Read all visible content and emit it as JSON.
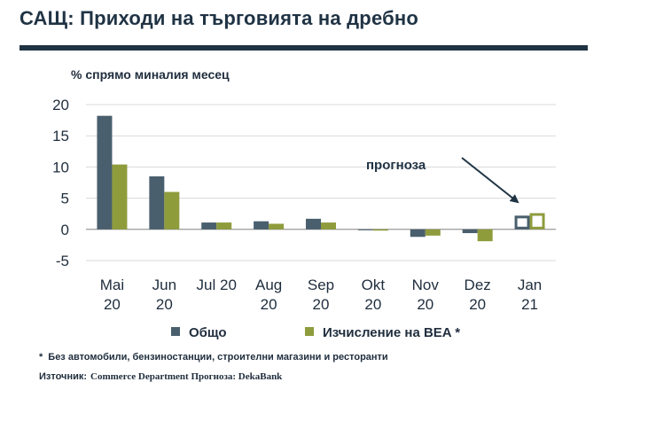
{
  "header": {
    "title": "САЩ: Приходи на търговията на дребно"
  },
  "chart_data": {
    "type": "bar",
    "ylabel": "% спрямо миналия месец",
    "ylim": [
      -5,
      20
    ],
    "yticks": [
      20,
      15,
      10,
      5,
      0,
      -5
    ],
    "grid": true,
    "categories": [
      {
        "line1": "Mai",
        "line2": "20"
      },
      {
        "line1": "Jun",
        "line2": "20"
      },
      {
        "line1": "Jul 20",
        "line2": ""
      },
      {
        "line1": "Aug",
        "line2": "20"
      },
      {
        "line1": "Sep",
        "line2": "20"
      },
      {
        "line1": "Okt",
        "line2": "20"
      },
      {
        "line1": "Nov",
        "line2": "20"
      },
      {
        "line1": "Dez",
        "line2": "20"
      },
      {
        "line1": "Jan",
        "line2": "21"
      }
    ],
    "series": [
      {
        "name": "Общо",
        "color": "#4a5f6d",
        "values": [
          18.2,
          8.5,
          1.1,
          1.3,
          1.7,
          -0.1,
          -1.2,
          -0.6,
          2.2
        ]
      },
      {
        "name": "Изчисление на BEA *",
        "color": "#8f9c3c",
        "values": [
          10.4,
          6.0,
          1.1,
          0.9,
          1.1,
          -0.2,
          -1.0,
          -1.9,
          2.6
        ]
      }
    ],
    "forecast_index": 8,
    "annotation": "прогноза",
    "legend_position": "bottom"
  },
  "footnote": {
    "marker": "*",
    "text": "Без автомобили, бензиностанции, строителни магазини и ресторанти"
  },
  "source": {
    "label": "Източник:",
    "text": "Commerce Department Прогноза: DekaBank"
  }
}
